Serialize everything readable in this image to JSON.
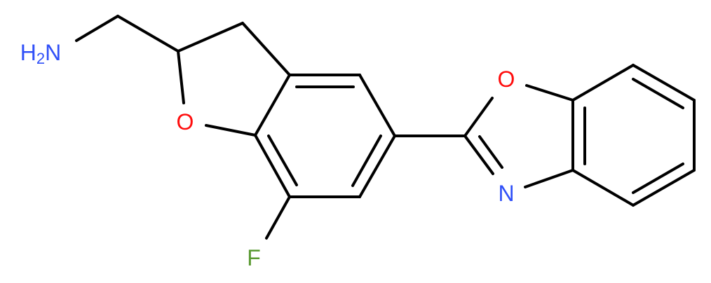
{
  "molecule": {
    "atoms": {
      "amine": {
        "label": "H",
        "subscript": "2",
        "element": "N",
        "color": "#3050F8"
      },
      "furan_oxygen": {
        "label": "O",
        "color": "#FF0D0D"
      },
      "fluorine": {
        "label": "F",
        "color": "#5A9A32"
      },
      "oxazole_oxygen": {
        "label": "O",
        "color": "#FF0D0D"
      },
      "oxazole_nitrogen": {
        "label": "N",
        "color": "#3050F8"
      }
    },
    "bond_color": "#000000"
  }
}
